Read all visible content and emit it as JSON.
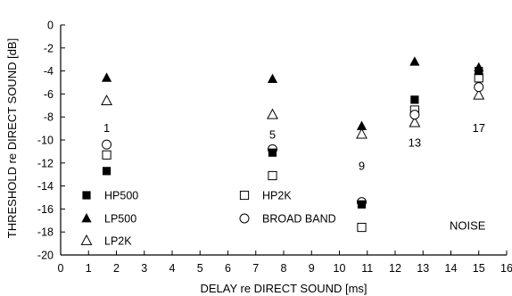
{
  "chart_data": {
    "type": "scatter",
    "xlabel": "DELAY re DIRECT SOUND [ms]",
    "ylabel": "THRESHOLD re DIRECT SOUND [dB]",
    "xlim": [
      0,
      16
    ],
    "ylim": [
      -20,
      0
    ],
    "xticks": [
      0,
      1,
      2,
      3,
      4,
      5,
      6,
      7,
      8,
      9,
      10,
      11,
      12,
      13,
      14,
      15,
      16
    ],
    "yticks": [
      0,
      -2,
      -4,
      -6,
      -8,
      -10,
      -12,
      -14,
      -16,
      -18,
      -20
    ],
    "grid": false,
    "legend": "bottom-left",
    "series": [
      {
        "name": "HP500",
        "marker": "square-filled",
        "x": [
          1.65,
          7.6,
          10.8,
          12.7,
          15.0
        ],
        "y": [
          -12.7,
          -11.1,
          -15.6,
          -6.5,
          -4.0
        ]
      },
      {
        "name": "LP500",
        "marker": "triangle-filled",
        "x": [
          1.65,
          7.6,
          10.8,
          12.7,
          15.0
        ],
        "y": [
          -4.6,
          -4.7,
          -8.8,
          -3.2,
          -3.7
        ]
      },
      {
        "name": "LP2K",
        "marker": "triangle-open",
        "x": [
          1.65,
          7.6,
          10.8,
          12.7,
          15.0
        ],
        "y": [
          -6.6,
          -7.8,
          -9.5,
          -8.5,
          -6.1
        ]
      },
      {
        "name": "HP2K",
        "marker": "square-open",
        "x": [
          1.65,
          7.6,
          10.8,
          12.7,
          15.0
        ],
        "y": [
          -11.3,
          -13.1,
          -17.6,
          -7.4,
          -4.6
        ]
      },
      {
        "name": "BROAD BAND",
        "marker": "circle-open",
        "x": [
          1.65,
          7.6,
          10.8,
          12.7,
          15.0
        ],
        "y": [
          -10.4,
          -10.8,
          -15.4,
          -7.8,
          -5.4
        ]
      }
    ],
    "annotations": [
      {
        "text": "1",
        "x": 1.65,
        "y": -8.9
      },
      {
        "text": "5",
        "x": 7.6,
        "y": -9.5
      },
      {
        "text": "9",
        "x": 10.8,
        "y": -12.2
      },
      {
        "text": "13",
        "x": 12.7,
        "y": -10.2
      },
      {
        "text": "17",
        "x": 15.0,
        "y": -8.9
      },
      {
        "text": "NOISE",
        "x": 14.6,
        "y": -17.4
      }
    ]
  }
}
